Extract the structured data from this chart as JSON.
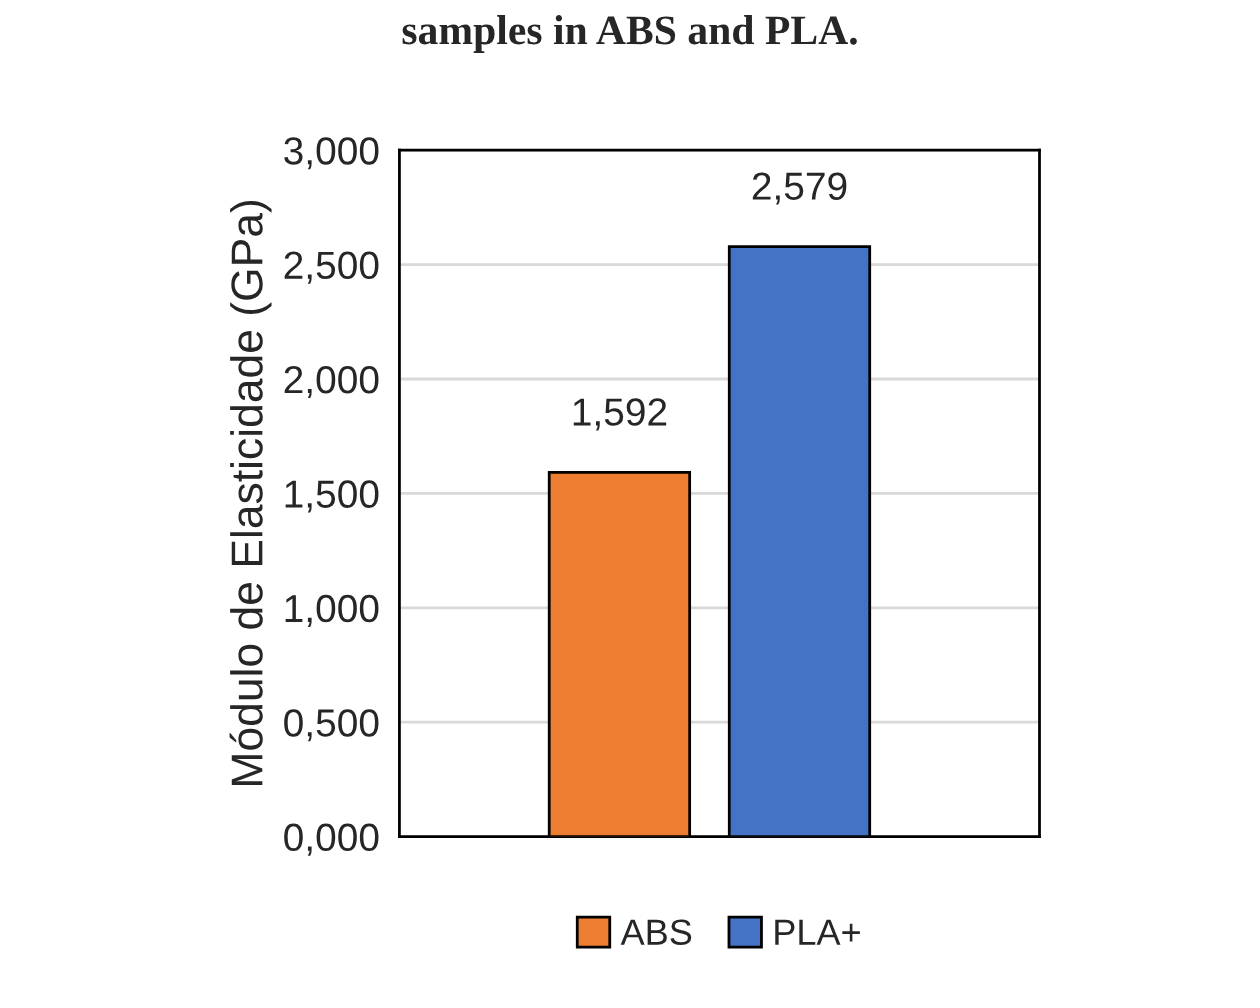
{
  "chart_data": {
    "type": "bar",
    "title": "samples in ABS and PLA.",
    "ylabel": "Módulo de Elasticidade (GPa)",
    "categories": [
      null,
      null
    ],
    "series": [
      {
        "name": "ABS",
        "color": "#ed7d31",
        "values": [
          1.592,
          null
        ],
        "value_labels": [
          "1,592",
          null
        ]
      },
      {
        "name": "PLA+",
        "color": "#4472c4",
        "values": [
          null,
          2.579
        ],
        "value_labels": [
          null,
          "2,579"
        ]
      }
    ],
    "ylim": [
      0,
      3
    ],
    "yticks": [
      {
        "value": 0,
        "label": "0,000"
      },
      {
        "value": 0.5,
        "label": "0,500"
      },
      {
        "value": 1,
        "label": "1,000"
      },
      {
        "value": 1.5,
        "label": "1,500"
      },
      {
        "value": 2,
        "label": "2,000"
      },
      {
        "value": 2.5,
        "label": "2,500"
      },
      {
        "value": 3,
        "label": "3,000"
      }
    ],
    "grid": "y",
    "legend": "bottom"
  }
}
